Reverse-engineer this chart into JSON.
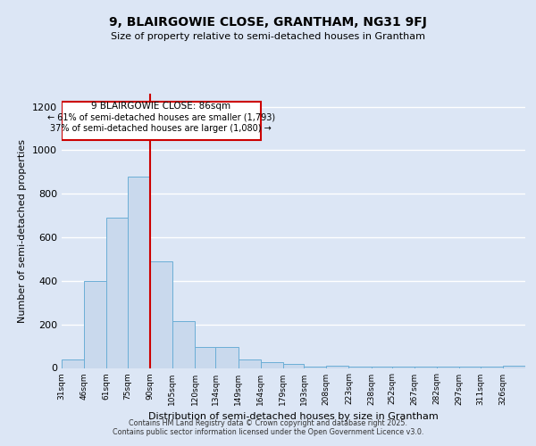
{
  "title1": "9, BLAIRGOWIE CLOSE, GRANTHAM, NG31 9FJ",
  "title2": "Size of property relative to semi-detached houses in Grantham",
  "xlabel": "Distribution of semi-detached houses by size in Grantham",
  "ylabel": "Number of semi-detached properties",
  "categories": [
    "31sqm",
    "46sqm",
    "61sqm",
    "75sqm",
    "90sqm",
    "105sqm",
    "120sqm",
    "134sqm",
    "149sqm",
    "164sqm",
    "179sqm",
    "193sqm",
    "208sqm",
    "223sqm",
    "238sqm",
    "252sqm",
    "267sqm",
    "282sqm",
    "297sqm",
    "311sqm",
    "326sqm"
  ],
  "bin_edges": [
    31,
    46,
    61,
    75,
    90,
    105,
    120,
    134,
    149,
    164,
    179,
    193,
    208,
    223,
    238,
    252,
    267,
    282,
    297,
    311,
    326,
    341
  ],
  "values": [
    40,
    400,
    690,
    880,
    490,
    215,
    95,
    95,
    40,
    25,
    20,
    5,
    10,
    5,
    5,
    5,
    5,
    5,
    5,
    5,
    10
  ],
  "bar_color": "#c9d9ed",
  "bar_edge_color": "#6baed6",
  "bar_edge_width": 0.7,
  "red_line_x": 90,
  "property_label": "9 BLAIRGOWIE CLOSE: 86sqm",
  "smaller_pct": "← 61% of semi-detached houses are smaller (1,793)",
  "larger_pct": "37% of semi-detached houses are larger (1,080) →",
  "annotation_box_color": "#ffffff",
  "annotation_box_edge_color": "#cc0000",
  "red_line_color": "#cc0000",
  "ylim": [
    0,
    1260
  ],
  "yticks": [
    0,
    200,
    400,
    600,
    800,
    1000,
    1200
  ],
  "xlim_left": 31,
  "xlim_right": 341,
  "background_color": "#dce6f5",
  "grid_color": "#ffffff",
  "footer1": "Contains HM Land Registry data © Crown copyright and database right 2025.",
  "footer2": "Contains public sector information licensed under the Open Government Licence v3.0."
}
